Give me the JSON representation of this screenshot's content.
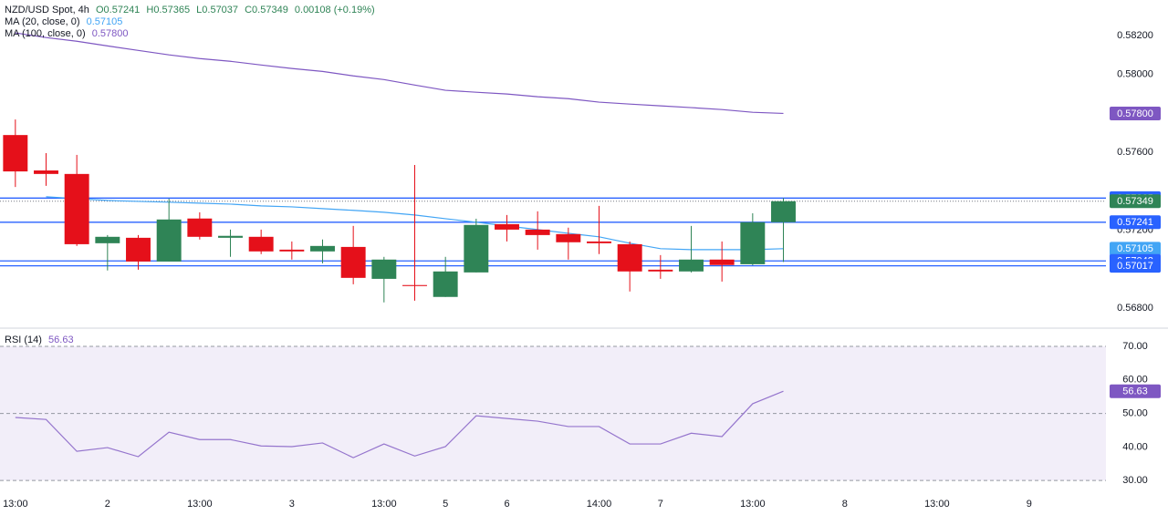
{
  "header": {
    "symbol": "NZD/USD Spot, 4h",
    "open": "O0.57241",
    "high": "H0.57365",
    "low": "L0.57037",
    "close": "C0.57349",
    "change": "0.00108 (+0.19%)"
  },
  "chart_data": [
    {
      "type": "candlestick",
      "x": [
        0,
        1,
        2,
        3,
        4,
        5,
        6,
        7,
        8,
        9,
        10,
        11,
        12,
        13,
        14,
        15,
        16,
        17,
        18,
        19,
        20,
        21,
        22,
        23,
        24,
        25
      ],
      "open": [
        0.57689,
        0.57507,
        0.57489,
        0.57133,
        0.57161,
        0.57039,
        0.5726,
        0.57161,
        0.57166,
        0.571,
        0.57091,
        0.57114,
        0.5695,
        0.56918,
        0.56857,
        0.56983,
        0.57231,
        0.57203,
        0.5718,
        0.57142,
        0.57128,
        0.56997,
        0.56988,
        0.57049,
        0.57025,
        0.57241
      ],
      "high": [
        0.57769,
        0.57596,
        0.57587,
        0.57175,
        0.57175,
        0.57362,
        0.57292,
        0.57203,
        0.57203,
        0.57142,
        0.57152,
        0.57222,
        0.57063,
        0.57535,
        0.57063,
        0.57259,
        0.57278,
        0.57297,
        0.57213,
        0.57325,
        0.57142,
        0.57072,
        0.57222,
        0.57142,
        0.57287,
        0.57365
      ],
      "low": [
        0.57422,
        0.57428,
        0.57119,
        0.56993,
        0.56997,
        0.57039,
        0.57152,
        0.57063,
        0.57077,
        0.57049,
        0.5703,
        0.56922,
        0.56829,
        0.56838,
        0.56857,
        0.56983,
        0.57142,
        0.571,
        0.57049,
        0.57077,
        0.56885,
        0.5695,
        0.56983,
        0.56936,
        0.5702,
        0.57037
      ],
      "close": [
        0.57502,
        0.57489,
        0.57128,
        0.57166,
        0.57039,
        0.57255,
        0.57166,
        0.57171,
        0.57091,
        0.57091,
        0.57119,
        0.56955,
        0.57049,
        0.56913,
        0.56988,
        0.57227,
        0.57203,
        0.57175,
        0.57138,
        0.57133,
        0.56988,
        0.56988,
        0.57049,
        0.57021,
        0.57241,
        0.57349
      ],
      "up_color": "#2f8456",
      "down_color": "#e5101a",
      "series": [
        {
          "name": "MA (20, close, 0)",
          "legend_value": "0.57105",
          "color": "#42a5f5",
          "values": [
            null,
            0.57372,
            0.57362,
            0.57353,
            0.57348,
            0.57344,
            0.57339,
            0.57334,
            0.57325,
            0.5732,
            0.57311,
            0.57302,
            0.57292,
            0.57278,
            0.57259,
            0.57241,
            0.57222,
            0.57203,
            0.57184,
            0.57166,
            0.57133,
            0.57105,
            0.571,
            0.571,
            0.571,
            0.57105
          ]
        },
        {
          "name": "MA (100, close, 0)",
          "legend_value": "0.57800",
          "color": "#7e57c2",
          "values": [
            0.58214,
            0.5819,
            0.58171,
            0.58147,
            0.58124,
            0.58101,
            0.58082,
            0.58068,
            0.58049,
            0.58031,
            0.58016,
            0.57993,
            0.57974,
            0.57946,
            0.57919,
            0.57909,
            0.579,
            0.57886,
            0.57876,
            0.57858,
            0.57848,
            0.57839,
            0.5783,
            0.5782,
            0.57806,
            0.578
          ]
        }
      ],
      "hlines": [
        {
          "value": 0.57365,
          "color": "#2962ff"
        },
        {
          "value": 0.57241,
          "color": "#2962ff"
        },
        {
          "value": 0.57042,
          "color": "#2962ff"
        },
        {
          "value": 0.57017,
          "color": "#2962ff"
        }
      ],
      "price_labels": [
        {
          "value": 0.578,
          "label": "0.57800",
          "color": "#7e57c2"
        },
        {
          "value": 0.57365,
          "label": "0.57365",
          "color": "#2962ff"
        },
        {
          "value": 0.57349,
          "label": "0.57349",
          "color": "#2f8456"
        },
        {
          "value": 0.57241,
          "label": "0.57241",
          "color": "#2962ff"
        },
        {
          "value": 0.57105,
          "label": "0.57105",
          "color": "#42a5f5"
        },
        {
          "value": 0.57042,
          "label": "0.57042",
          "color": "#2962ff"
        },
        {
          "value": 0.57017,
          "label": "0.57017",
          "color": "#2962ff"
        }
      ],
      "ylim": [
        0.56706,
        0.58383
      ],
      "yticks": [
        {
          "value": 0.582,
          "label": "0.58200"
        },
        {
          "value": 0.58,
          "label": "0.58000"
        },
        {
          "value": 0.576,
          "label": "0.57600"
        },
        {
          "value": 0.572,
          "label": "0.57200"
        },
        {
          "value": 0.568,
          "label": "0.56800"
        }
      ],
      "xlim": [
        -0.5,
        35.5
      ],
      "xticks": [
        {
          "value": 0,
          "label": "13:00"
        },
        {
          "value": 3,
          "label": "2"
        },
        {
          "value": 6,
          "label": "13:00"
        },
        {
          "value": 9,
          "label": "3"
        },
        {
          "value": 12,
          "label": "13:00"
        },
        {
          "value": 14,
          "label": "5"
        },
        {
          "value": 16,
          "label": "6"
        },
        {
          "value": 19,
          "label": "14:00"
        },
        {
          "value": 21,
          "label": "7"
        },
        {
          "value": 24,
          "label": "13:00"
        },
        {
          "value": 27,
          "label": "8"
        },
        {
          "value": 30,
          "label": "13:00"
        },
        {
          "value": 33,
          "label": "9"
        }
      ]
    },
    {
      "type": "line",
      "x": [
        0,
        1,
        2,
        3,
        4,
        5,
        6,
        7,
        8,
        9,
        10,
        11,
        12,
        13,
        14,
        15,
        16,
        17,
        18,
        19,
        20,
        21,
        22,
        23,
        24,
        25
      ],
      "series": [
        {
          "name": "RSI (14)",
          "legend_value": "56.63",
          "color": "#9575cd",
          "values": [
            48.8,
            48.2,
            38.7,
            39.8,
            37.1,
            44.4,
            42.2,
            42.2,
            40.3,
            40.1,
            41.2,
            36.8,
            40.9,
            37.3,
            40.1,
            49.3,
            48.5,
            47.7,
            46.1,
            46.1,
            40.9,
            40.9,
            44.1,
            43.1,
            52.9,
            56.63
          ]
        }
      ],
      "last_label": {
        "value": 56.63,
        "label": "56.63",
        "color": "#7e57c2"
      },
      "levels": [
        70,
        50,
        30
      ],
      "ylim": [
        26.5,
        74.9
      ],
      "yticks": [
        {
          "value": 70,
          "label": "70.00"
        },
        {
          "value": 60,
          "label": "60.00"
        },
        {
          "value": 50,
          "label": "50.00"
        },
        {
          "value": 40,
          "label": "40.00"
        },
        {
          "value": 30,
          "label": "30.00"
        }
      ],
      "xlim": [
        -0.5,
        35.5
      ]
    }
  ]
}
